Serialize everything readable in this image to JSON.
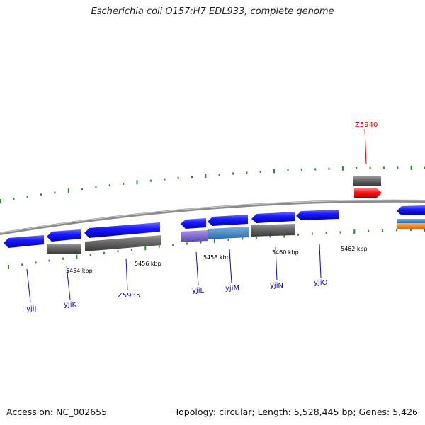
{
  "title": "Escherichia coli O157:H7 EDL933, complete genome",
  "footer": {
    "accession": "Accession: NC_002655",
    "summary": "Topology: circular; Length: 5,528,445 bp; Genes: 5,426"
  },
  "scale_labels": [
    "5454 kbp",
    "5456 kbp",
    "5458 kbp",
    "5460 kbp",
    "5462 kbp"
  ],
  "gene_labels": [
    "yjiJ",
    "yjiK",
    "Z5935",
    "yjiL",
    "yjiM",
    "yjiN",
    "yjiO",
    "Z5940"
  ],
  "colors": {
    "forward_gene": "#1a1aff",
    "reverse_gene_shadow": "#555555",
    "highlight_gene": "#ff1a1a",
    "tick": "#2a8a2a",
    "backbone": "#888888",
    "label_blue": "#1010aa",
    "label_red": "#cc0000",
    "purple_feature": "#7a5fd0",
    "steelblue_feature": "#4a8ac8",
    "orange_feature": "#ff8c1a"
  }
}
